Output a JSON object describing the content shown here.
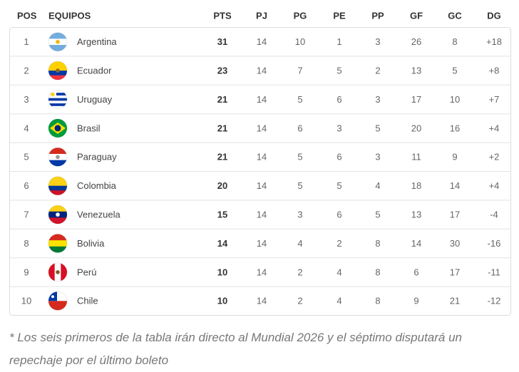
{
  "table": {
    "header": [
      "POS",
      "EQUIPOS",
      "PTS",
      "PJ",
      "PG",
      "PE",
      "PP",
      "GF",
      "GC",
      "DG"
    ],
    "rows": [
      [
        "1",
        "Argentina",
        "31",
        "14",
        "10",
        "1",
        "3",
        "26",
        "8",
        "+18"
      ],
      [
        "2",
        "Ecuador",
        "23",
        "14",
        "7",
        "5",
        "2",
        "13",
        "5",
        "+8"
      ],
      [
        "3",
        "Uruguay",
        "21",
        "14",
        "5",
        "6",
        "3",
        "17",
        "10",
        "+7"
      ],
      [
        "4",
        "Brasil",
        "21",
        "14",
        "6",
        "3",
        "5",
        "20",
        "16",
        "+4"
      ],
      [
        "5",
        "Paraguay",
        "21",
        "14",
        "5",
        "6",
        "3",
        "11",
        "9",
        "+2"
      ],
      [
        "6",
        "Colombia",
        "20",
        "14",
        "5",
        "5",
        "4",
        "18",
        "14",
        "+4"
      ],
      [
        "7",
        "Venezuela",
        "15",
        "14",
        "3",
        "6",
        "5",
        "13",
        "17",
        "-4"
      ],
      [
        "8",
        "Bolivia",
        "14",
        "14",
        "4",
        "2",
        "8",
        "14",
        "30",
        "-16"
      ],
      [
        "9",
        "Perú",
        "10",
        "14",
        "2",
        "4",
        "8",
        "6",
        "17",
        "-11"
      ],
      [
        "10",
        "Chile",
        "10",
        "14",
        "2",
        "4",
        "8",
        "9",
        "21",
        "-12"
      ]
    ]
  },
  "footnote": "* Los seis primeros de la tabla irán directo al Mundial 2026 y el séptimo disputará un repechaje por el último boleto"
}
